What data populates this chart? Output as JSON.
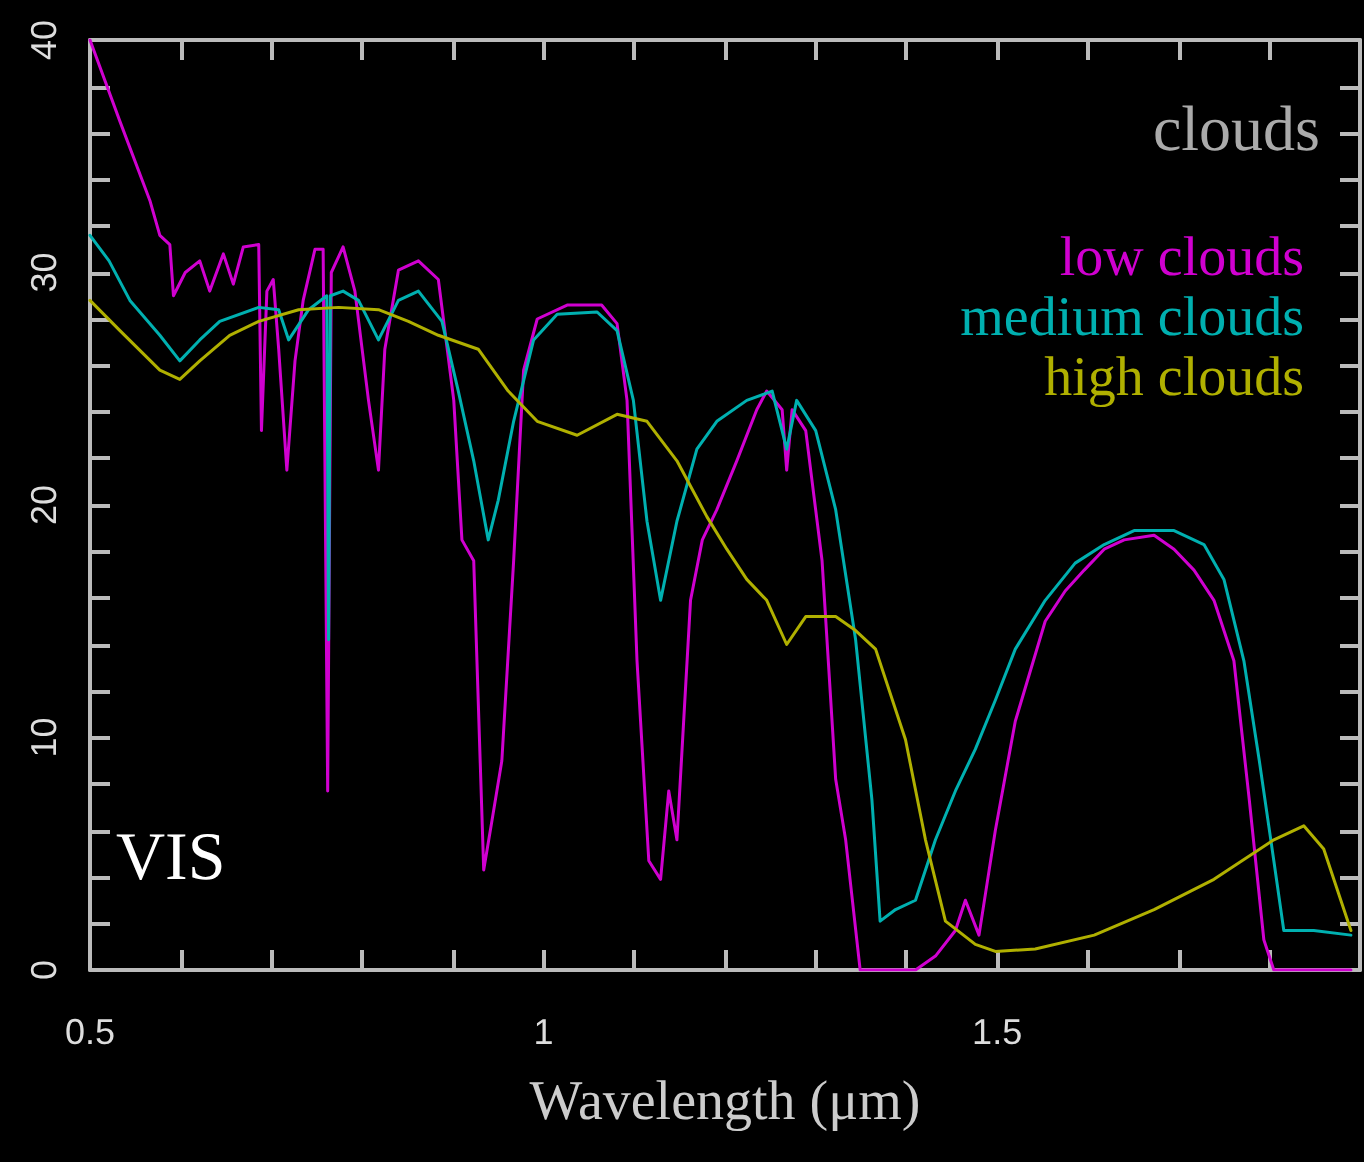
{
  "chart_data": {
    "type": "line",
    "xlabel": "Wavelength (μm)",
    "legend_title": "clouds",
    "legend": "top right",
    "annotations": [
      "VIS"
    ],
    "xlim": [
      0.5,
      1.9
    ],
    "xticks": [
      0.5,
      {
        "value": 0.6,
        "label": null
      },
      {
        "value": 0.7,
        "label": null
      },
      {
        "value": 0.8,
        "label": null
      },
      {
        "value": 0.9,
        "label": null
      },
      1,
      {
        "value": 1.1,
        "label": null
      },
      {
        "value": 1.2,
        "label": null
      },
      {
        "value": 1.3,
        "label": null
      },
      {
        "value": 1.4,
        "label": null
      },
      1.5,
      {
        "value": 1.6,
        "label": null
      },
      {
        "value": 1.7,
        "label": null
      },
      {
        "value": 1.8,
        "label": null
      }
    ],
    "ylim": [
      0,
      40
    ],
    "yticks": [
      0,
      {
        "value": 2,
        "label": null
      },
      {
        "value": 4,
        "label": null
      },
      {
        "value": 6,
        "label": null
      },
      {
        "value": 8,
        "label": null
      },
      10,
      {
        "value": 12,
        "label": null
      },
      {
        "value": 14,
        "label": null
      },
      {
        "value": 16,
        "label": null
      },
      {
        "value": 18,
        "label": null
      },
      20,
      {
        "value": 22,
        "label": null
      },
      {
        "value": 24,
        "label": null
      },
      {
        "value": 26,
        "label": null
      },
      {
        "value": 28,
        "label": null
      },
      30,
      {
        "value": 32,
        "label": null
      },
      {
        "value": 34,
        "label": null
      },
      {
        "value": 36,
        "label": null
      },
      {
        "value": 38,
        "label": null
      },
      40
    ],
    "grid": false,
    "marker": "none",
    "line_style": "solid",
    "series": [
      {
        "name": "low clouds",
        "color": "#d000d0",
        "x": [
          0.5,
          0.533,
          0.566,
          0.577,
          0.588,
          0.592,
          0.605,
          0.621,
          0.632,
          0.647,
          0.658,
          0.669,
          0.686,
          0.689,
          0.695,
          0.702,
          0.708,
          0.717,
          0.726,
          0.735,
          0.748,
          0.757,
          0.762,
          0.766,
          0.779,
          0.792,
          0.807,
          0.818,
          0.825,
          0.84,
          0.862,
          0.884,
          0.901,
          0.91,
          0.923,
          0.934,
          0.943,
          0.954,
          0.967,
          0.978,
          0.993,
          1.026,
          1.064,
          1.081,
          1.092,
          1.103,
          1.116,
          1.129,
          1.138,
          1.147,
          1.162,
          1.175,
          1.191,
          1.213,
          1.235,
          1.246,
          1.263,
          1.268,
          1.274,
          1.289,
          1.307,
          1.322,
          1.333,
          1.349,
          1.41,
          1.432,
          1.454,
          1.465,
          1.48,
          1.498,
          1.52,
          1.553,
          1.575,
          1.596,
          1.618,
          1.64,
          1.673,
          1.695,
          1.717,
          1.739,
          1.761,
          1.778,
          1.794,
          1.805,
          1.89
        ],
        "values": [
          40,
          36.5,
          33.1,
          31.6,
          31.2,
          29,
          30,
          30.5,
          29.2,
          30.8,
          29.5,
          31.1,
          31.2,
          23.2,
          29.2,
          29.7,
          26.7,
          21.5,
          26.2,
          28.8,
          31,
          31,
          7.7,
          30,
          31.1,
          29.2,
          24.5,
          21.5,
          26.7,
          30.1,
          30.5,
          29.7,
          24.5,
          18.5,
          17.6,
          4.3,
          6.4,
          9,
          17.6,
          25.8,
          28,
          28.6,
          28.6,
          27.8,
          24.5,
          13.3,
          4.7,
          3.9,
          7.7,
          5.6,
          15.9,
          18.5,
          19.8,
          21.9,
          24.1,
          24.9,
          24.1,
          21.5,
          24.1,
          23.2,
          17.6,
          8.2,
          5.6,
          0,
          0,
          0.6,
          1.7,
          3,
          1.5,
          6,
          10.7,
          15,
          16.3,
          17.2,
          18.1,
          18.5,
          18.7,
          18.1,
          17.2,
          15.9,
          13.3,
          7.3,
          1.3,
          0,
          0
        ]
      },
      {
        "name": "medium clouds",
        "color": "#00b0b0",
        "x": [
          0.5,
          0.521,
          0.544,
          0.577,
          0.599,
          0.621,
          0.643,
          0.686,
          0.708,
          0.719,
          0.741,
          0.761,
          0.763,
          0.765,
          0.779,
          0.796,
          0.818,
          0.84,
          0.862,
          0.888,
          0.906,
          0.923,
          0.939,
          0.95,
          0.967,
          0.989,
          1.015,
          1.059,
          1.081,
          1.099,
          1.114,
          1.129,
          1.147,
          1.169,
          1.191,
          1.224,
          1.252,
          1.268,
          1.279,
          1.3,
          1.322,
          1.344,
          1.362,
          1.371,
          1.388,
          1.41,
          1.432,
          1.454,
          1.476,
          1.498,
          1.52,
          1.553,
          1.586,
          1.618,
          1.651,
          1.695,
          1.728,
          1.75,
          1.772,
          1.789,
          1.805,
          1.816,
          1.849,
          1.89
        ],
        "values": [
          31.6,
          30.5,
          28.8,
          27.3,
          26.2,
          27.1,
          27.9,
          28.5,
          28.4,
          27.1,
          28.4,
          29,
          14.2,
          29,
          29.2,
          28.8,
          27.1,
          28.8,
          29.2,
          27.9,
          24.9,
          21.9,
          18.5,
          20.2,
          23.6,
          27.1,
          28.2,
          28.3,
          27.5,
          24.5,
          19.3,
          15.9,
          19.3,
          22.4,
          23.6,
          24.5,
          24.9,
          22.4,
          24.5,
          23.2,
          19.8,
          14.2,
          7.3,
          2.1,
          2.6,
          3,
          5.6,
          7.7,
          9.5,
          11.6,
          13.8,
          15.9,
          17.5,
          18.3,
          18.9,
          18.9,
          18.3,
          16.8,
          13.3,
          9,
          4.7,
          1.7,
          1.7,
          1.5
        ]
      },
      {
        "name": "high clouds",
        "color": "#b0b000",
        "x": [
          0.5,
          0.533,
          0.577,
          0.599,
          0.621,
          0.654,
          0.686,
          0.73,
          0.774,
          0.818,
          0.851,
          0.884,
          0.928,
          0.961,
          0.993,
          1.037,
          1.081,
          1.114,
          1.147,
          1.18,
          1.202,
          1.224,
          1.246,
          1.268,
          1.289,
          1.322,
          1.344,
          1.366,
          1.399,
          1.421,
          1.443,
          1.476,
          1.498,
          1.542,
          1.607,
          1.673,
          1.739,
          1.805,
          1.838,
          1.86,
          1.89
        ],
        "values": [
          28.8,
          27.5,
          25.8,
          25.4,
          26.2,
          27.3,
          27.9,
          28.4,
          28.5,
          28.4,
          27.9,
          27.3,
          26.7,
          24.9,
          23.6,
          23,
          23.9,
          23.6,
          21.9,
          19.5,
          18.1,
          16.8,
          15.9,
          14,
          15.2,
          15.2,
          14.6,
          13.8,
          9.9,
          5.6,
          2.1,
          1.1,
          0.8,
          0.9,
          1.5,
          2.6,
          3.9,
          5.6,
          6.2,
          5.2,
          1.7
        ]
      }
    ]
  }
}
